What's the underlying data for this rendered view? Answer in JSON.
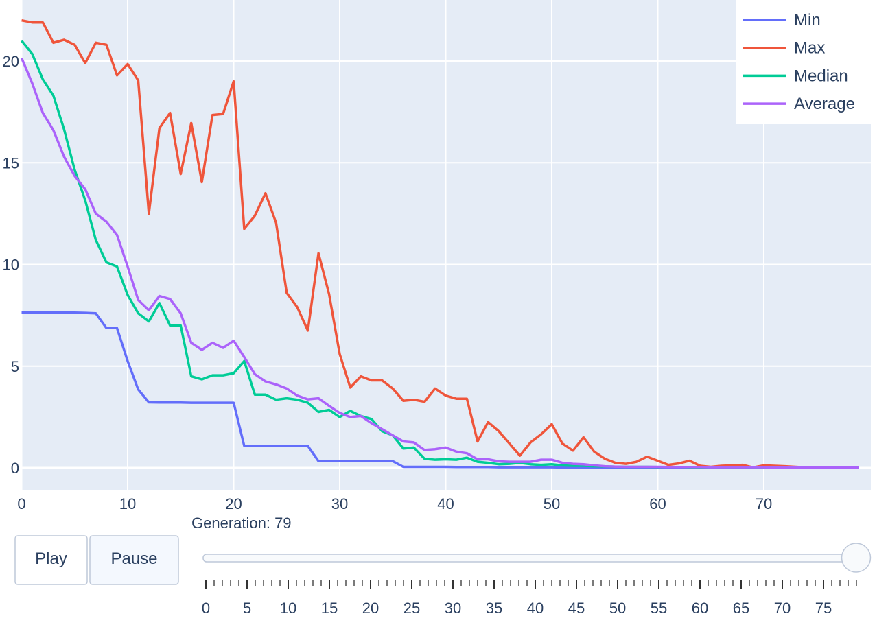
{
  "chart_data": {
    "type": "line",
    "title": "",
    "xlabel": "",
    "ylabel": "",
    "xlim": [
      0,
      79
    ],
    "ylim": [
      -1.1,
      23.0
    ],
    "grid": true,
    "legend_position": "top-right",
    "x_ticks": [
      "0",
      "10",
      "20",
      "30",
      "40",
      "50",
      "60",
      "70"
    ],
    "x_tick_values": [
      0,
      10,
      20,
      30,
      40,
      50,
      60,
      70
    ],
    "y_ticks": [
      "0",
      "5",
      "10",
      "15",
      "20"
    ],
    "y_tick_values": [
      0,
      5,
      10,
      15,
      20
    ],
    "series": [
      {
        "name": "Min",
        "color": "#636efa",
        "values": [
          7.65,
          7.65,
          7.64,
          7.64,
          7.63,
          7.63,
          7.62,
          7.6,
          6.87,
          6.87,
          5.25,
          3.85,
          3.22,
          3.21,
          3.21,
          3.21,
          3.2,
          3.2,
          3.2,
          3.2,
          3.2,
          1.08,
          1.08,
          1.08,
          1.08,
          1.08,
          1.08,
          1.08,
          0.33,
          0.33,
          0.33,
          0.33,
          0.33,
          0.33,
          0.33,
          0.33,
          0.05,
          0.05,
          0.05,
          0.05,
          0.05,
          0.04,
          0.04,
          0.04,
          0.04,
          0.03,
          0.03,
          0.03,
          0.03,
          0.03,
          0.03,
          0.02,
          0.02,
          0.02,
          0.02,
          0.02,
          0.02,
          0.02,
          0.02,
          0.02,
          0.02,
          0.02,
          0.02,
          0.02,
          0.01,
          0.01,
          0.01,
          0.01,
          0.01,
          0.01,
          0.01,
          0.01,
          0.01,
          0.01,
          0.01,
          0.01,
          0.01,
          0.01,
          0.01,
          0.01
        ]
      },
      {
        "name": "Max",
        "color": "#ef553b",
        "values": [
          22.0,
          21.9,
          21.9,
          20.9,
          21.05,
          20.8,
          19.9,
          20.9,
          20.8,
          19.3,
          19.85,
          19.05,
          12.5,
          16.7,
          17.45,
          14.45,
          16.95,
          14.05,
          17.35,
          17.4,
          19.0,
          11.75,
          12.4,
          13.5,
          12.05,
          8.6,
          7.9,
          6.75,
          10.55,
          8.55,
          5.6,
          3.95,
          4.5,
          4.3,
          4.3,
          3.9,
          3.3,
          3.35,
          3.25,
          3.9,
          3.55,
          3.4,
          3.4,
          1.3,
          2.25,
          1.8,
          1.2,
          0.6,
          1.25,
          1.65,
          2.15,
          1.2,
          0.85,
          1.5,
          0.8,
          0.45,
          0.25,
          0.2,
          0.3,
          0.55,
          0.35,
          0.15,
          0.22,
          0.35,
          0.1,
          0.05,
          0.1,
          0.12,
          0.15,
          0.02,
          0.12,
          0.1,
          0.08,
          0.05,
          0.02,
          0.02,
          0.02,
          0.02,
          0.02,
          0.02
        ]
      },
      {
        "name": "Median",
        "color": "#00cc96",
        "values": [
          21.0,
          20.35,
          19.1,
          18.3,
          16.65,
          14.65,
          13.15,
          11.2,
          10.1,
          9.9,
          8.5,
          7.6,
          7.2,
          8.1,
          7.0,
          7.0,
          4.5,
          4.35,
          4.55,
          4.55,
          4.65,
          5.25,
          3.6,
          3.6,
          3.35,
          3.42,
          3.35,
          3.2,
          2.75,
          2.85,
          2.5,
          2.8,
          2.55,
          2.4,
          1.8,
          1.6,
          0.95,
          1.0,
          0.45,
          0.4,
          0.42,
          0.4,
          0.5,
          0.3,
          0.25,
          0.18,
          0.2,
          0.25,
          0.18,
          0.15,
          0.18,
          0.12,
          0.1,
          0.1,
          0.08,
          0.07,
          0.06,
          0.05,
          0.05,
          0.05,
          0.04,
          0.04,
          0.04,
          0.03,
          0.03,
          0.03,
          0.03,
          0.03,
          0.03,
          0.02,
          0.02,
          0.02,
          0.02,
          0.02,
          0.02,
          0.02,
          0.02,
          0.02,
          0.02,
          0.02
        ]
      },
      {
        "name": "Average",
        "color": "#ab63fa",
        "values": [
          20.15,
          18.9,
          17.45,
          16.6,
          15.3,
          14.35,
          13.7,
          12.5,
          12.1,
          11.45,
          9.9,
          8.25,
          7.75,
          8.45,
          8.3,
          7.6,
          6.15,
          5.8,
          6.15,
          5.9,
          6.25,
          5.45,
          4.6,
          4.25,
          4.1,
          3.9,
          3.55,
          3.37,
          3.42,
          3.05,
          2.7,
          2.5,
          2.55,
          2.2,
          1.9,
          1.6,
          1.3,
          1.25,
          0.88,
          0.92,
          1.0,
          0.8,
          0.72,
          0.42,
          0.42,
          0.32,
          0.3,
          0.3,
          0.3,
          0.4,
          0.4,
          0.25,
          0.2,
          0.18,
          0.12,
          0.08,
          0.06,
          0.05,
          0.05,
          0.05,
          0.05,
          0.04,
          0.04,
          0.04,
          0.04,
          0.03,
          0.03,
          0.03,
          0.03,
          0.03,
          0.03,
          0.02,
          0.02,
          0.02,
          0.02,
          0.02,
          0.02,
          0.02,
          0.02,
          0.02
        ]
      }
    ]
  },
  "controls": {
    "play_label": "Play",
    "pause_label": "Pause",
    "slider_prefix": "Generation: ",
    "slider_value": 79,
    "current_label": "Generation: 79",
    "slider_min": 0,
    "slider_max": 79,
    "slider_tick_labels": [
      "0",
      "5",
      "10",
      "15",
      "20",
      "25",
      "30",
      "35",
      "40",
      "45",
      "50",
      "55",
      "60",
      "65",
      "70",
      "75"
    ]
  }
}
